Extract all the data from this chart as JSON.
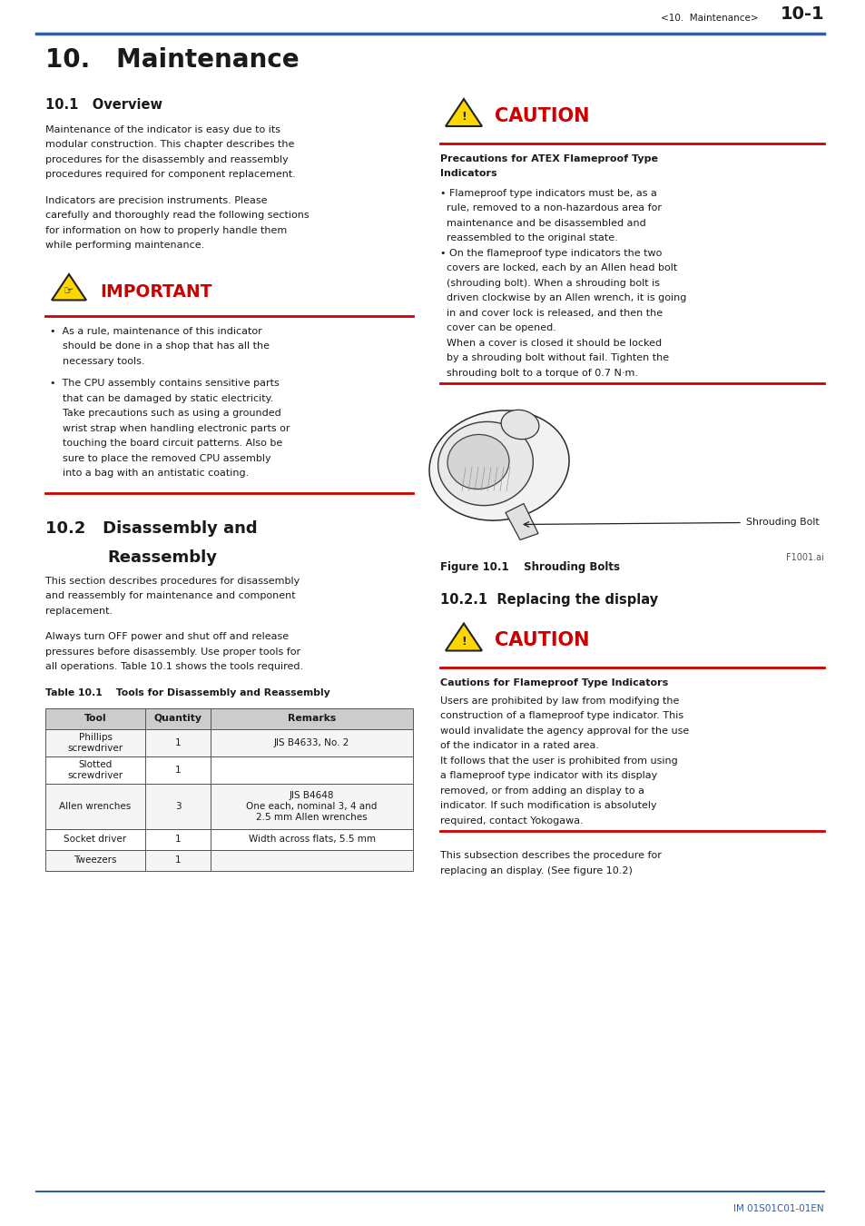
{
  "page_width": 9.54,
  "page_height": 13.5,
  "bg_color": "#ffffff",
  "header_text_left": "<10.  Maintenance>",
  "header_text_right": "10-1",
  "header_line_color": "#2e5fa3",
  "chapter_title": "10.   Maintenance",
  "section_10_1_title": "10.1   Overview",
  "section_10_1_body1": "Maintenance of the indicator is easy due to its\nmodular construction. This chapter describes the\nprocedures for the disassembly and reassembly\nprocedures required for component replacement.",
  "section_10_1_body2": "Indicators are precision instruments. Please\ncarefully and thoroughly read the following sections\nfor information on how to properly handle them\nwhile performing maintenance.",
  "important_title": "IMPORTANT",
  "important_bullet1": "•  As a rule, maintenance of this indicator\n    should be done in a shop that has all the\n    necessary tools.",
  "important_bullet2": "•  The CPU assembly contains sensitive parts\n    that can be damaged by static electricity.\n    Take precautions such as using a grounded\n    wrist strap when handling electronic parts or\n    touching the board circuit patterns. Also be\n    sure to place the removed CPU assembly\n    into a bag with an antistatic coating.",
  "section_10_2_line1": "10.2   Disassembly and",
  "section_10_2_line2": "         Reassembly",
  "section_10_2_body1": "This section describes procedures for disassembly\nand reassembly for maintenance and component\nreplacement.",
  "section_10_2_body2": "Always turn OFF power and shut off and release\npressures before disassembly. Use proper tools for\nall operations. Table 10.1 shows the tools required.",
  "table_title": "Table 10.1    Tools for Disassembly and Reassembly",
  "table_headers": [
    "Tool",
    "Quantity",
    "Remarks"
  ],
  "table_rows": [
    [
      "Phillips\nscrewdriver",
      "1",
      "JIS B4633, No. 2"
    ],
    [
      "Slotted\nscrewdriver",
      "1",
      ""
    ],
    [
      "Allen wrenches",
      "3",
      "JIS B4648\nOne each, nominal 3, 4 and\n2.5 mm Allen wrenches"
    ],
    [
      "Socket driver",
      "1",
      "Width across flats, 5.5 mm"
    ],
    [
      "Tweezers",
      "1",
      ""
    ]
  ],
  "caution1_title": "CAUTION",
  "caution1_body_title": "Precautions for ATEX Flameproof Type\nIndicators",
  "caution1_lines": [
    "• Flameproof type indicators must be, as a",
    "  rule, removed to a non-hazardous area for",
    "  maintenance and be disassembled and",
    "  reassembled to the original state.",
    "• On the flameproof type indicators the two",
    "  covers are locked, each by an Allen head bolt",
    "  (shrouding bolt). When a shrouding bolt is",
    "  driven clockwise by an Allen wrench, it is going",
    "  in and cover lock is released, and then the",
    "  cover can be opened.",
    "  When a cover is closed it should be locked",
    "  by a shrouding bolt without fail. Tighten the",
    "  shrouding bolt to a torque of 0.7 N·m."
  ],
  "figure_label": "Shrouding Bolt",
  "figure_file_label": "F1001.ai",
  "figure_caption": "Figure 10.1    Shrouding Bolts",
  "section_10_2_1_title": "10.2.1  Replacing the display",
  "caution2_title": "CAUTION",
  "caution2_body_title": "Cautions for Flameproof Type Indicators",
  "caution2_lines": [
    "Users are prohibited by law from modifying the",
    "construction of a flameproof type indicator. This",
    "would invalidate the agency approval for the use",
    "of the indicator in a rated area.",
    "It follows that the user is prohibited from using",
    "a flameproof type indicator with its display",
    "removed, or from adding an display to a",
    "indicator. If such modification is absolutely",
    "required, contact Yokogawa."
  ],
  "closing_text": "This subsection describes the procedure for\nreplacing an display. (See figure 10.2)",
  "footer_text": "IM 01S01C01-01EN",
  "red_color": "#cc0000",
  "blue_color": "#2e5fa3",
  "text_color": "#1a1a1a",
  "yellow_color": "#FFD700"
}
